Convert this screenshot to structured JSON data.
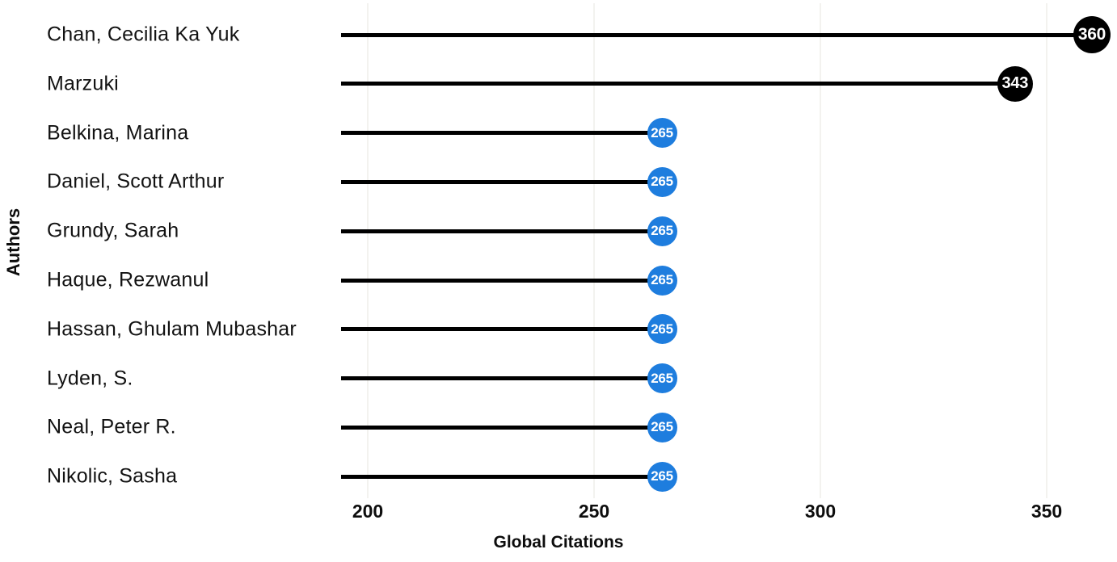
{
  "chart_data": {
    "type": "bar",
    "variant": "horizontal-lollipop",
    "title": "",
    "xlabel": "Global Citations",
    "ylabel": "Authors",
    "categories": [
      "Chan, Cecilia Ka Yuk",
      "Marzuki",
      "Belkina, Marina",
      "Daniel, Scott Arthur",
      "Grundy, Sarah",
      "Haque, Rezwanul",
      "Hassan, Ghulam Mubashar",
      "Lyden, S.",
      "Neal, Peter R.",
      "Nikolic, Sasha"
    ],
    "values": [
      360,
      343,
      265,
      265,
      265,
      265,
      265,
      265,
      265,
      265
    ],
    "value_labels": [
      "360",
      "343",
      "265",
      "265",
      "265",
      "265",
      "265",
      "265",
      "265",
      "265"
    ],
    "point_colors": [
      "#000000",
      "#000000",
      "#1E7DDE",
      "#1E7DDE",
      "#1E7DDE",
      "#1E7DDE",
      "#1E7DDE",
      "#1E7DDE",
      "#1E7DDE",
      "#1E7DDE"
    ],
    "xticks": [
      200,
      250,
      300,
      350
    ],
    "xtick_labels": [
      "200",
      "250",
      "300",
      "350"
    ],
    "xlim": [
      194,
      365.5
    ],
    "grid": "vertical-major-only",
    "legend": "none",
    "marker_label_position": "inside-marker"
  },
  "colors": {
    "background": "#ffffff",
    "stem": "#000000",
    "gridline": "#f3f2ef",
    "marker_text": "#ffffff",
    "axis_text": "#0d0d0d",
    "accent_blue": "#1E7DDE",
    "accent_black": "#000000"
  }
}
